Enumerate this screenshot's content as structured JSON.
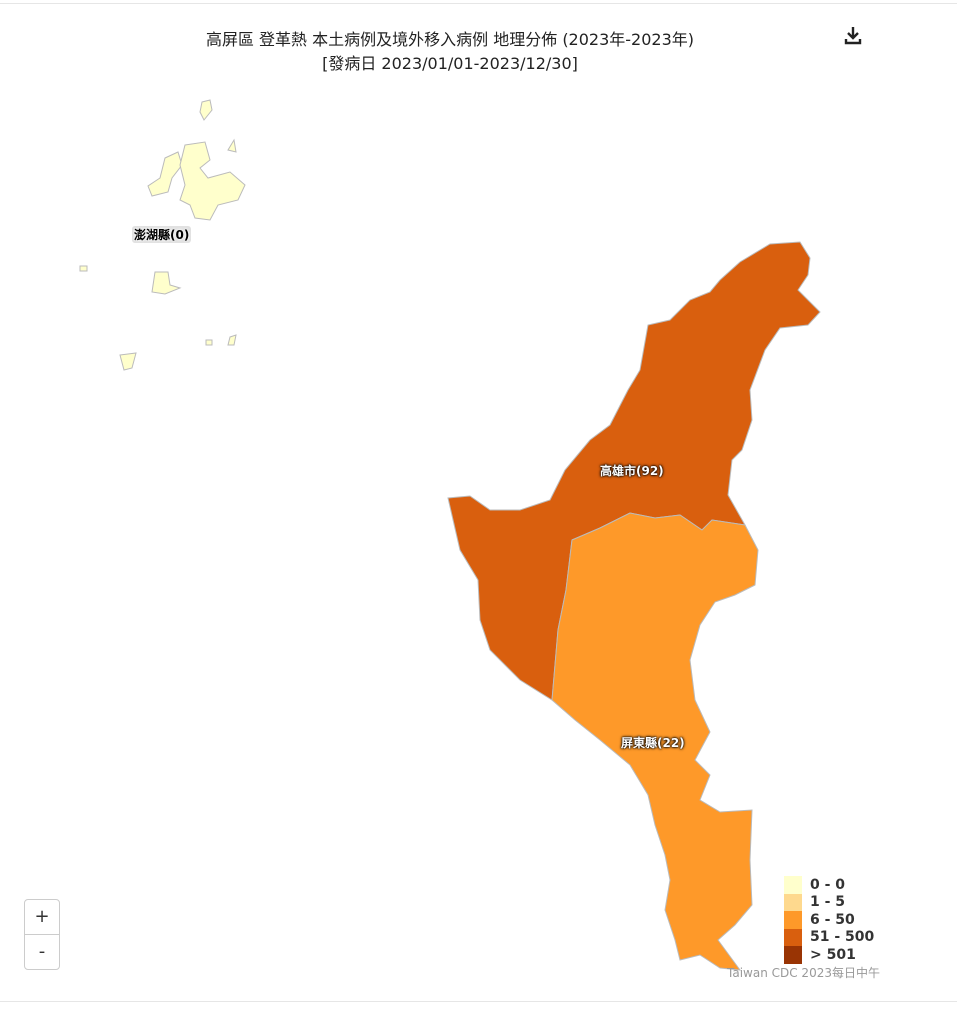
{
  "title": {
    "line1": "高屏區 登革熱 本土病例及境外移入病例 地理分佈 (2023年-2023年)",
    "line2": "[發病日 2023/01/01-2023/12/30]"
  },
  "toolbar": {
    "download_icon": "download-icon"
  },
  "regions": [
    {
      "name": "澎湖縣",
      "count": 0,
      "label": "澎湖縣(0)",
      "color": "#ffffcc"
    },
    {
      "name": "高雄市",
      "count": 92,
      "label": "高雄市(92)",
      "color": "#d95f0e"
    },
    {
      "name": "屏東縣",
      "count": 22,
      "label": "屏東縣(22)",
      "color": "#fe9929"
    }
  ],
  "zoom": {
    "in": "+",
    "out": "-"
  },
  "legend": [
    {
      "label": "0 - 0",
      "color": "#ffffcc"
    },
    {
      "label": "1 - 5",
      "color": "#fed98e"
    },
    {
      "label": "6 - 50",
      "color": "#fe9929"
    },
    {
      "label": "51 - 500",
      "color": "#d95f0e"
    },
    {
      "label": "> 501",
      "color": "#993404"
    }
  ],
  "credit": "Taiwan CDC 2023每日中午"
}
